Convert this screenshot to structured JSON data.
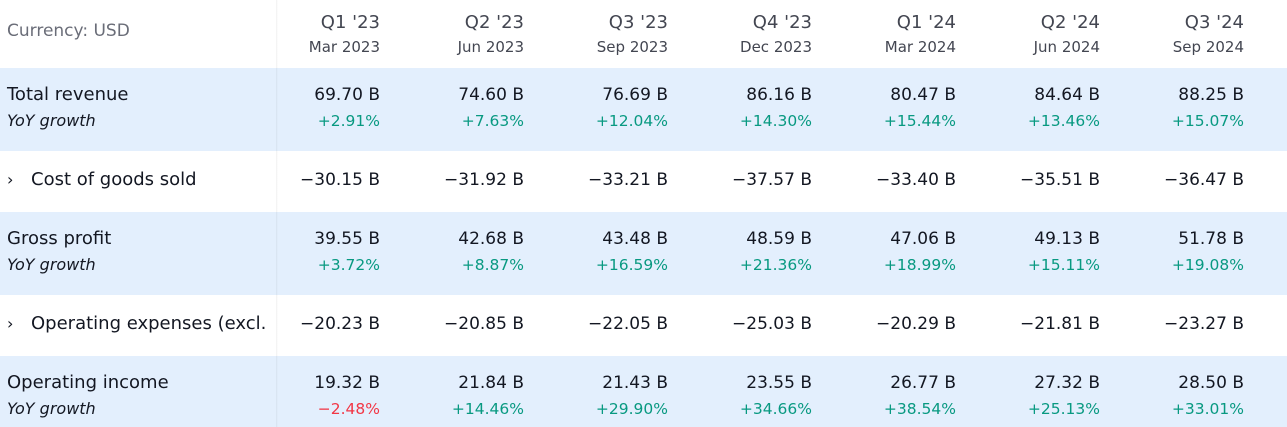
{
  "header": {
    "currency_label": "Currency: USD",
    "periods": [
      {
        "quarter": "Q1 '23",
        "date": "Mar 2023"
      },
      {
        "quarter": "Q2 '23",
        "date": "Jun 2023"
      },
      {
        "quarter": "Q3 '23",
        "date": "Sep 2023"
      },
      {
        "quarter": "Q4 '23",
        "date": "Dec 2023"
      },
      {
        "quarter": "Q1 '24",
        "date": "Mar 2024"
      },
      {
        "quarter": "Q2 '24",
        "date": "Jun 2024"
      },
      {
        "quarter": "Q3 '24",
        "date": "Sep 2024"
      }
    ]
  },
  "colors": {
    "highlight_row": "#e3effd",
    "positive": "#089981",
    "negative": "#f23645"
  },
  "rows": [
    {
      "label": "Total revenue",
      "sub_label": "YoY growth",
      "values": [
        "69.70 B",
        "74.60 B",
        "76.69 B",
        "86.16 B",
        "80.47 B",
        "84.64 B",
        "88.25 B"
      ],
      "growth": [
        "+2.91%",
        "+7.63%",
        "+12.04%",
        "+14.30%",
        "+15.44%",
        "+13.46%",
        "+15.07%"
      ]
    },
    {
      "label": "Cost of goods sold",
      "expand_icon": "chevron-right-icon",
      "values": [
        "−30.15 B",
        "−31.92 B",
        "−33.21 B",
        "−37.57 B",
        "−33.40 B",
        "−35.51 B",
        "−36.47 B"
      ]
    },
    {
      "label": "Gross profit",
      "sub_label": "YoY growth",
      "values": [
        "39.55 B",
        "42.68 B",
        "43.48 B",
        "48.59 B",
        "47.06 B",
        "49.13 B",
        "51.78 B"
      ],
      "growth": [
        "+3.72%",
        "+8.87%",
        "+16.59%",
        "+21.36%",
        "+18.99%",
        "+15.11%",
        "+19.08%"
      ]
    },
    {
      "label": "Operating expenses (excl.",
      "expand_icon": "chevron-right-icon",
      "values": [
        "−20.23 B",
        "−20.85 B",
        "−22.05 B",
        "−25.03 B",
        "−20.29 B",
        "−21.81 B",
        "−23.27 B"
      ]
    },
    {
      "label": "Operating income",
      "sub_label": "YoY growth",
      "values": [
        "19.32 B",
        "21.84 B",
        "21.43 B",
        "23.55 B",
        "26.77 B",
        "27.32 B",
        "28.50 B"
      ],
      "growth": [
        "−2.48%",
        "+14.46%",
        "+29.90%",
        "+34.66%",
        "+38.54%",
        "+25.13%",
        "+33.01%"
      ]
    }
  ]
}
